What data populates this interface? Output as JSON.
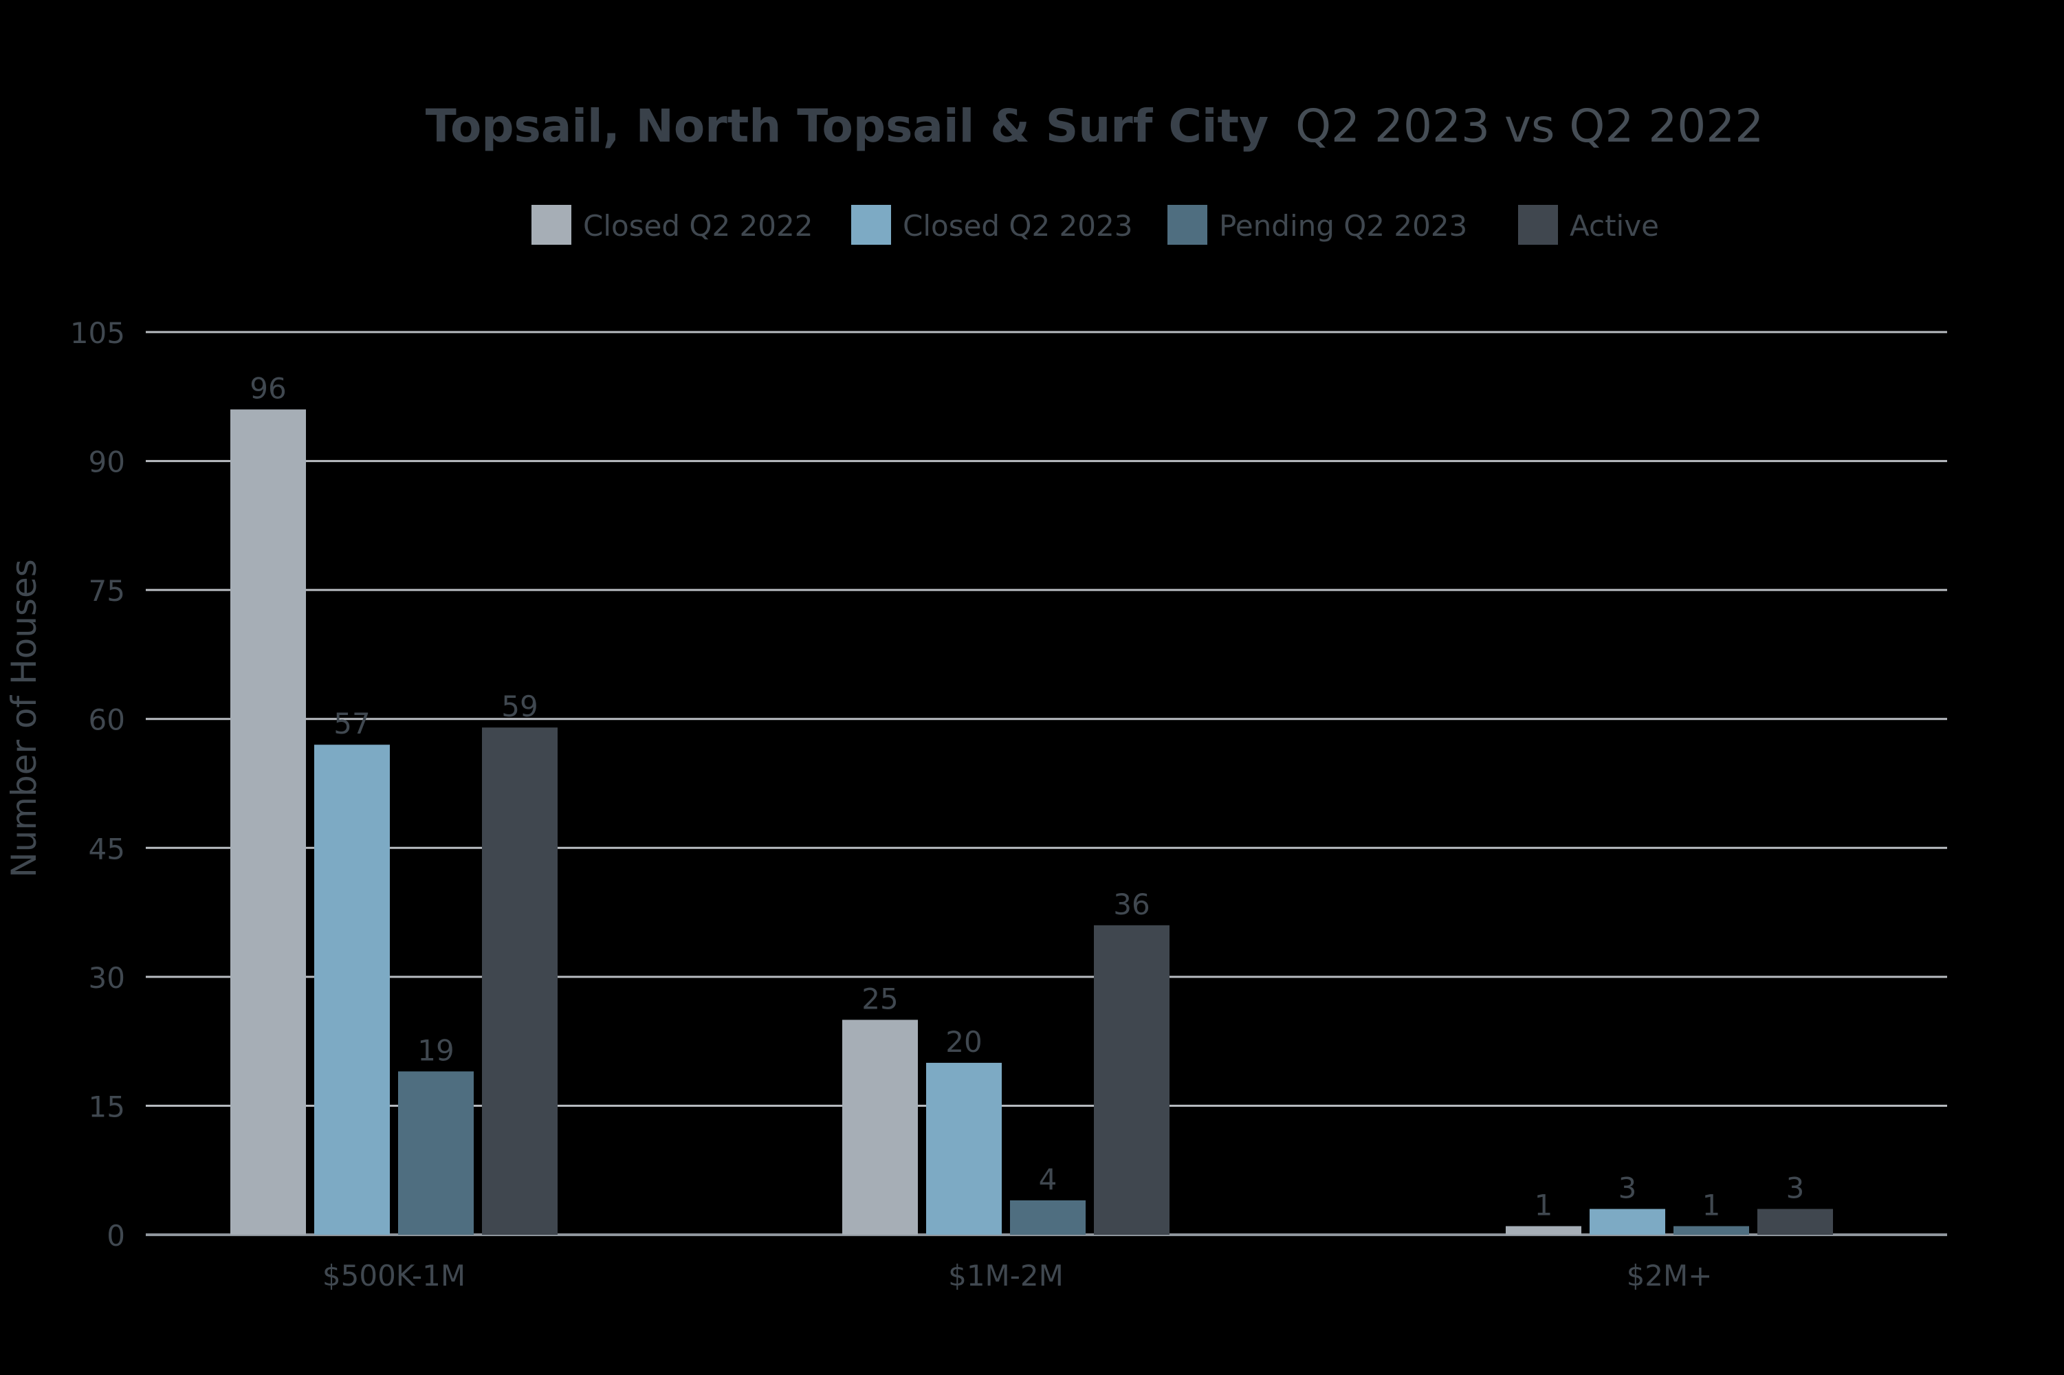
{
  "chart_data": {
    "type": "bar",
    "title_bold": "Topsail, North Topsail & Surf City",
    "title_rest": "Q2 2023 vs Q2 2022",
    "ylabel": "Number of Houses",
    "xlabel": "",
    "ylim": [
      0,
      105
    ],
    "yticks": [
      0,
      15,
      30,
      45,
      60,
      75,
      90,
      105
    ],
    "grid": true,
    "legend_position": "top-center",
    "categories": [
      "$500K-1M",
      "$1M-2M",
      "$2M+"
    ],
    "series": [
      {
        "name": "Closed Q2 2022",
        "color": "#a6aeb6",
        "values": [
          96,
          25,
          1
        ]
      },
      {
        "name": "Closed Q2 2023",
        "color": "#7daac4",
        "values": [
          57,
          20,
          3
        ]
      },
      {
        "name": "Pending Q2 2023",
        "color": "#4f6e80",
        "values": [
          19,
          4,
          1
        ]
      },
      {
        "name": "Active",
        "color": "#40474f",
        "values": [
          59,
          36,
          3
        ]
      }
    ],
    "colors": {
      "background": "#000000",
      "title_bold": "#39414a",
      "title_rest": "#454d55",
      "text": "#404850",
      "gridline": "#b9bdc2",
      "axis": "#8f969d"
    }
  }
}
